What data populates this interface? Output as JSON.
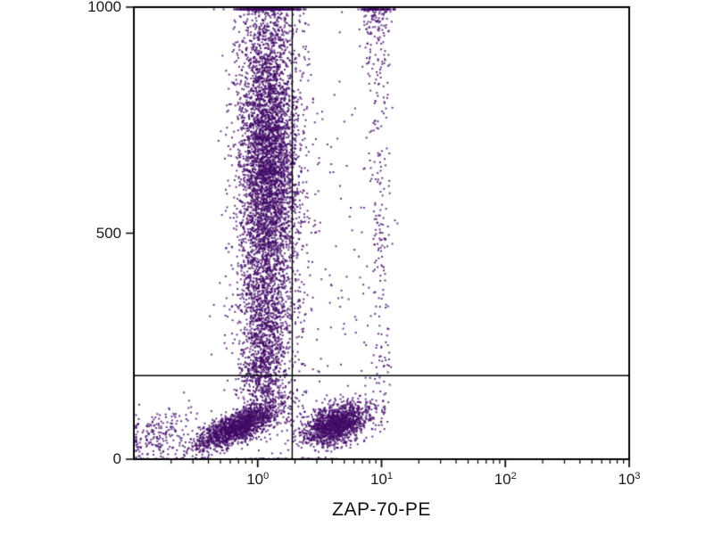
{
  "chart_data": {
    "type": "scatter",
    "title": "",
    "xlabel": "ZAP-70-PE",
    "ylabel": "",
    "x_scale": "log10",
    "x_range_log": [
      -1,
      3
    ],
    "y_range": [
      0,
      1000
    ],
    "x_major_ticks": [
      {
        "base": "10",
        "exp": "0",
        "log": 0
      },
      {
        "base": "10",
        "exp": "1",
        "log": 1
      },
      {
        "base": "10",
        "exp": "2",
        "log": 2
      },
      {
        "base": "10",
        "exp": "3",
        "log": 3
      }
    ],
    "y_ticks": [
      {
        "value": 0,
        "label": "0"
      },
      {
        "value": 500,
        "label": "500"
      },
      {
        "value": 1000,
        "label": "1000"
      }
    ],
    "dot_color": "#410a66",
    "axis_color": "#000000",
    "quadrant_gate": {
      "x": 1.9,
      "y": 185
    },
    "populations": [
      {
        "name": "main-band-core",
        "cx_log": 0.08,
        "sx_log": 0.11,
        "cy": 660,
        "sy": 150,
        "corr": 0,
        "count": 3200
      },
      {
        "name": "main-band-spread",
        "cx_log": 0.07,
        "sx_log": 0.15,
        "cy": 600,
        "sy": 260,
        "corr": 0,
        "count": 1800
      },
      {
        "name": "main-band-top",
        "cx_log": 0.09,
        "sx_log": 0.12,
        "cy": 1000,
        "sy": 90,
        "corr": 0,
        "count": 400
      },
      {
        "name": "main-band-tail",
        "cx_log": 0.05,
        "sx_log": 0.09,
        "cy": 300,
        "sy": 90,
        "corr": 0,
        "count": 700
      },
      {
        "name": "neck",
        "cx_log": 0.02,
        "sx_log": 0.1,
        "cy": 190,
        "sy": 50,
        "corr": 0,
        "count": 450
      },
      {
        "name": "bottom-left",
        "cx_log": -0.18,
        "sx_log": 0.17,
        "cy": 72,
        "sy": 26,
        "corr": 0.75,
        "count": 1600
      },
      {
        "name": "far-left",
        "cx_log": -0.8,
        "sx_log": 0.13,
        "cy": 55,
        "sy": 30,
        "corr": 0.3,
        "count": 200
      },
      {
        "name": "bottom-mid",
        "cx_log": 0.62,
        "sx_log": 0.13,
        "cy": 80,
        "sy": 24,
        "corr": 0.35,
        "count": 1500
      },
      {
        "name": "right-column",
        "cx_log": 0.97,
        "sx_log": 0.05,
        "ydist": {
          "type": "uniform",
          "min": 60,
          "max": 1060
        },
        "corr": 0,
        "count": 260
      },
      {
        "name": "right-column-top",
        "cx_log": 0.95,
        "sx_log": 0.06,
        "cy": 1020,
        "sy": 70,
        "corr": 0,
        "count": 160
      },
      {
        "name": "sparse-mid",
        "cx_log": 0.45,
        "sx_log": 0.35,
        "cy": 250,
        "sy": 180,
        "corr": 0,
        "count": 90
      },
      {
        "name": "sparse-upper",
        "cx_log": 0.55,
        "sx_log": 0.25,
        "ydist": {
          "type": "uniform",
          "min": 300,
          "max": 1000
        },
        "corr": 0,
        "count": 60
      }
    ]
  }
}
